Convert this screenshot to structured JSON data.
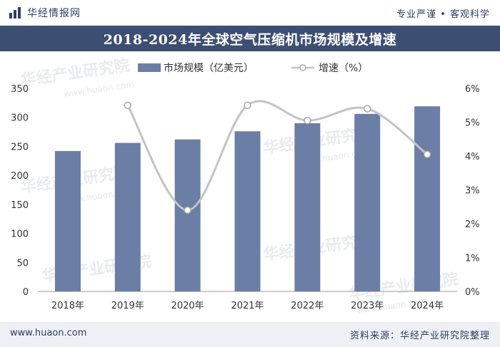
{
  "header": {
    "brand_name": "华经情报网",
    "tagline": "专业严谨 • 客观科学",
    "title": "2018-2024年全球空气压缩机市场规模及增速"
  },
  "watermark": {
    "text": "华经产业研究院",
    "url": "www.huaon.com"
  },
  "footer": {
    "url": "www.huaon.com",
    "source": "资料来源：华经产业研究院整理"
  },
  "colors": {
    "bar": "#6b7ea6",
    "line": "#c4c4c4",
    "marker_fill": "#ffffff",
    "marker_stroke": "#aaaaaa",
    "title_bar": "#3c4e72"
  },
  "chart_data": {
    "type": "bar+line",
    "title": "2018-2024年全球空气压缩机市场规模及增速",
    "categories": [
      "2018年",
      "2019年",
      "2020年",
      "2021年",
      "2022年",
      "2023年",
      "2024年"
    ],
    "series": [
      {
        "name": "市场规模（亿美元）",
        "type": "bar",
        "axis": "left",
        "values": [
          242,
          256,
          262,
          276,
          290,
          306,
          319
        ]
      },
      {
        "name": "增速（%）",
        "type": "line",
        "axis": "right",
        "values": [
          null,
          5.5,
          2.4,
          5.5,
          5.05,
          5.4,
          4.05
        ]
      }
    ],
    "y_left": {
      "min": 0,
      "max": 350,
      "ticks": [
        "0",
        "50",
        "100",
        "150",
        "200",
        "250",
        "300",
        "350"
      ]
    },
    "y_right": {
      "min": 0,
      "max": 6,
      "ticks": [
        "0%",
        "1%",
        "2%",
        "3%",
        "4%",
        "5%",
        "6%"
      ]
    },
    "legend": [
      "市场规模（亿美元）",
      "增速（%）"
    ],
    "legend_position": "top-center",
    "grid": false
  }
}
